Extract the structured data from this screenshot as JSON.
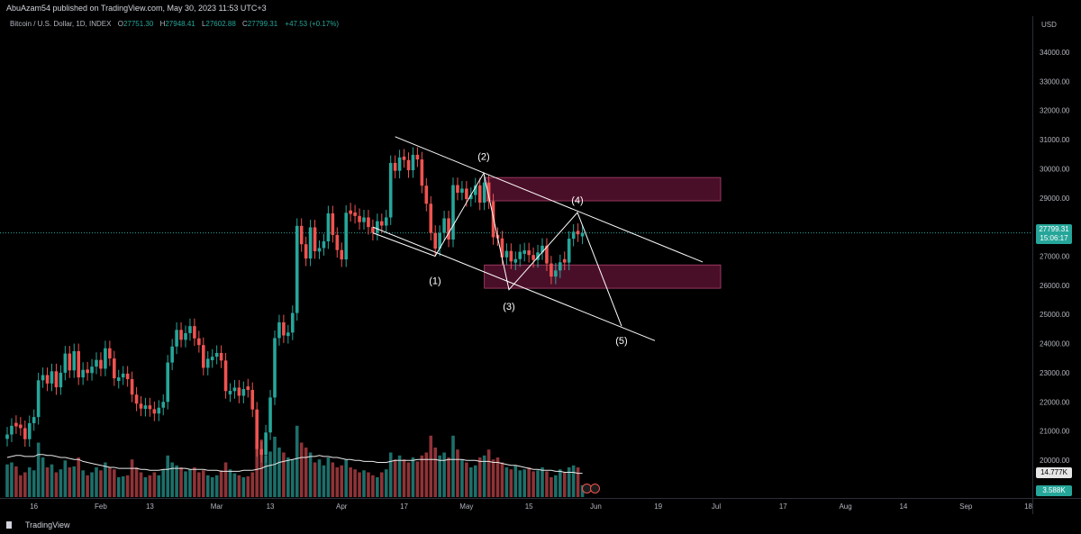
{
  "header": {
    "published": "AbuAzam54 published on TradingView.com, May 30, 2023 11:53 UTC+3"
  },
  "legend": {
    "symbol": "Bitcoin / U.S. Dollar, 1D, INDEX",
    "open_label": "O",
    "open": "27751.30",
    "high_label": "H",
    "high": "27948.41",
    "low_label": "L",
    "low": "27602.88",
    "close_label": "C",
    "close": "27799.31",
    "change": "+47.53 (+0.17%)"
  },
  "price_axis": {
    "currency": "USD",
    "last_price": "27799.31",
    "countdown": "15:06:17",
    "volume_ma_value": "14.777K",
    "volume_value": "3.588K"
  },
  "footer": {
    "brand": "TradingView"
  },
  "colors": {
    "up": "#26a69a",
    "down": "#ef5350",
    "zone": "#4a0f28",
    "drawing": "#ffffff"
  },
  "chart_data": {
    "type": "candlestick",
    "title": "Bitcoin / U.S. Dollar, 1D, INDEX",
    "ylim": [
      19000,
      35000
    ],
    "y_ticks": [
      20000,
      21000,
      22000,
      23000,
      24000,
      25000,
      26000,
      27000,
      28000,
      29000,
      30000,
      31000,
      32000,
      33000,
      34000
    ],
    "x_ticks": [
      "16",
      "Feb",
      "13",
      "Mar",
      "13",
      "Apr",
      "17",
      "May",
      "15",
      "Jun",
      "19",
      "Jul",
      "17",
      "Aug",
      "14",
      "Sep",
      "18"
    ],
    "series": [
      {
        "name": "price",
        "close": [
          20880,
          21180,
          21160,
          21100,
          20720,
          21270,
          21480,
          22740,
          22920,
          22630,
          23050,
          22500,
          23000,
          23660,
          23080,
          23740,
          22840,
          23100,
          22990,
          23210,
          23440,
          23140,
          23840,
          23490,
          22810,
          22840,
          22970,
          22780,
          22250,
          21940,
          21770,
          21880,
          21750,
          21600,
          21800,
          22000,
          23350,
          23900,
          24470,
          24130,
          24360,
          24600,
          24180,
          23950,
          23170,
          23480,
          23550,
          23680,
          23420,
          22370,
          22380,
          22490,
          22210,
          22440,
          22410,
          21740,
          20380,
          20180,
          20950,
          22150,
          24190,
          24730,
          24280,
          24380,
          25050,
          28040,
          27410,
          26920,
          27990,
          27170,
          27280,
          27510,
          28470,
          27730,
          27210,
          26890,
          28490,
          28450,
          28380,
          28170,
          28330,
          28000,
          27800,
          28200,
          28050,
          28330,
          30200,
          29930,
          30390,
          30300,
          29950,
          30480,
          30320,
          29420,
          28800,
          27800,
          27260,
          27800,
          28300,
          27570,
          29440,
          29180,
          29320,
          28960,
          29100,
          29430,
          28840,
          29530,
          28880,
          27650,
          27610,
          26960,
          27180,
          26820,
          26900,
          27150,
          27200,
          27040,
          26870,
          27130,
          27360,
          26750,
          26300,
          26510,
          26790,
          26780,
          27600,
          27840,
          27750,
          27799
        ],
        "up": [
          true,
          true,
          false,
          false,
          false,
          true,
          true,
          true,
          true,
          false,
          true,
          false,
          true,
          true,
          false,
          true,
          false,
          true,
          false,
          true,
          true,
          false,
          true,
          false,
          false,
          true,
          true,
          false,
          false,
          false,
          false,
          true,
          false,
          false,
          true,
          true,
          true,
          true,
          true,
          false,
          true,
          true,
          false,
          false,
          false,
          true,
          true,
          true,
          false,
          false,
          true,
          true,
          false,
          true,
          false,
          false,
          false,
          false,
          true,
          true,
          true,
          true,
          false,
          true,
          true,
          true,
          false,
          false,
          true,
          false,
          true,
          true,
          true,
          false,
          false,
          false,
          true,
          false,
          false,
          false,
          true,
          false,
          false,
          true,
          false,
          true,
          true,
          false,
          true,
          false,
          false,
          true,
          false,
          false,
          false,
          false,
          false,
          true,
          true,
          false,
          true,
          false,
          true,
          false,
          true,
          true,
          false,
          true,
          false,
          false,
          false,
          false,
          true,
          false,
          true,
          true,
          true,
          false,
          false,
          true,
          true,
          false,
          false,
          true,
          true,
          false,
          true,
          true,
          false,
          true
        ]
      },
      {
        "name": "volume",
        "relative_height": [
          0.33,
          0.35,
          0.31,
          0.22,
          0.25,
          0.3,
          0.27,
          0.55,
          0.4,
          0.3,
          0.33,
          0.25,
          0.28,
          0.37,
          0.3,
          0.31,
          0.4,
          0.27,
          0.22,
          0.25,
          0.3,
          0.27,
          0.35,
          0.3,
          0.28,
          0.2,
          0.21,
          0.22,
          0.38,
          0.3,
          0.25,
          0.2,
          0.22,
          0.25,
          0.22,
          0.28,
          0.42,
          0.35,
          0.32,
          0.3,
          0.26,
          0.28,
          0.3,
          0.25,
          0.27,
          0.22,
          0.2,
          0.22,
          0.27,
          0.35,
          0.28,
          0.24,
          0.22,
          0.2,
          0.21,
          0.25,
          0.55,
          0.58,
          0.42,
          0.46,
          0.61,
          0.5,
          0.45,
          0.4,
          0.38,
          0.72,
          0.55,
          0.5,
          0.45,
          0.35,
          0.38,
          0.32,
          0.4,
          0.35,
          0.3,
          0.32,
          0.38,
          0.3,
          0.28,
          0.25,
          0.27,
          0.25,
          0.22,
          0.2,
          0.25,
          0.28,
          0.45,
          0.38,
          0.42,
          0.38,
          0.35,
          0.4,
          0.36,
          0.42,
          0.45,
          0.62,
          0.5,
          0.42,
          0.45,
          0.4,
          0.62,
          0.48,
          0.38,
          0.35,
          0.3,
          0.32,
          0.4,
          0.42,
          0.48,
          0.38,
          0.4,
          0.35,
          0.3,
          0.28,
          0.32,
          0.27,
          0.28,
          0.3,
          0.26,
          0.27,
          0.3,
          0.26,
          0.2,
          0.22,
          0.28,
          0.25,
          0.3,
          0.32,
          0.3,
          0.12
        ],
        "ma": [
          0.4,
          0.41,
          0.42,
          0.42,
          0.41,
          0.41,
          0.41,
          0.43,
          0.43,
          0.42,
          0.42,
          0.41,
          0.4,
          0.4,
          0.39,
          0.38,
          0.38,
          0.36,
          0.35,
          0.34,
          0.33,
          0.32,
          0.31,
          0.3,
          0.3,
          0.29,
          0.29,
          0.29,
          0.29,
          0.29,
          0.28,
          0.28,
          0.27,
          0.27,
          0.27,
          0.28,
          0.28,
          0.29,
          0.29,
          0.29,
          0.29,
          0.28,
          0.28,
          0.28,
          0.28,
          0.27,
          0.27,
          0.27,
          0.26,
          0.26,
          0.26,
          0.26,
          0.26,
          0.27,
          0.27,
          0.27,
          0.28,
          0.29,
          0.31,
          0.32,
          0.33,
          0.35,
          0.36,
          0.37,
          0.38,
          0.39,
          0.4,
          0.4,
          0.41,
          0.41,
          0.42,
          0.41,
          0.41,
          0.4,
          0.4,
          0.39,
          0.38,
          0.38,
          0.37,
          0.37,
          0.36,
          0.36,
          0.36,
          0.35,
          0.35,
          0.35,
          0.36,
          0.37,
          0.37,
          0.37,
          0.37,
          0.37,
          0.38,
          0.38,
          0.38,
          0.38,
          0.38,
          0.37,
          0.37,
          0.38,
          0.38,
          0.38,
          0.38,
          0.37,
          0.37,
          0.37,
          0.36,
          0.36,
          0.36,
          0.35,
          0.35,
          0.34,
          0.33,
          0.32,
          0.32,
          0.31,
          0.3,
          0.29,
          0.28,
          0.28,
          0.27,
          0.27,
          0.27,
          0.26,
          0.26,
          0.25,
          0.25,
          0.25,
          0.24,
          0.24
        ]
      }
    ],
    "zones": [
      {
        "name": "resistance zone",
        "from": 28900,
        "to": 29700
      },
      {
        "name": "support zone",
        "from": 25900,
        "to": 26700
      }
    ],
    "wave_labels": [
      {
        "label": "(1)",
        "price": 26900
      },
      {
        "label": "(2)",
        "price": 30000
      },
      {
        "label": "(3)",
        "price": 25900
      },
      {
        "label": "(4)",
        "price": 28500
      },
      {
        "label": "(5)",
        "price": 24600
      }
    ],
    "wave_path_prices": [
      27800,
      27000,
      29850,
      25850,
      28500,
      24600
    ],
    "channel": {
      "upper_line": [
        31100,
        26800
      ],
      "lower_line": [
        28000,
        24100
      ]
    }
  }
}
